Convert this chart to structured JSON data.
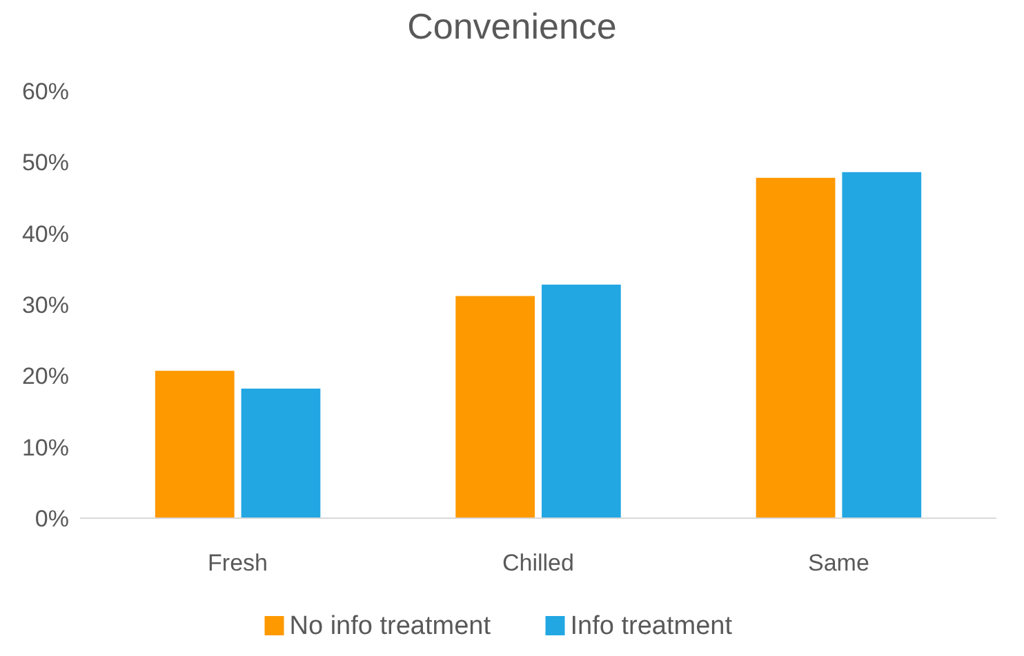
{
  "chart_data": {
    "type": "bar",
    "title": "Convenience",
    "categories": [
      "Fresh",
      "Chilled",
      "Same"
    ],
    "series": [
      {
        "name": "No info treatment",
        "color": "#ff9900",
        "values": [
          20.7,
          31.2,
          47.8
        ]
      },
      {
        "name": "Info treatment",
        "color": "#22a7e3",
        "values": [
          18.2,
          32.8,
          48.6
        ]
      }
    ],
    "ylim": [
      0,
      60
    ],
    "yticks": [
      {
        "value": 0,
        "label": "0%"
      },
      {
        "value": 10,
        "label": "10%"
      },
      {
        "value": 20,
        "label": "20%"
      },
      {
        "value": 30,
        "label": "30%"
      },
      {
        "value": 40,
        "label": "40%"
      },
      {
        "value": 50,
        "label": "50%"
      },
      {
        "value": 60,
        "label": "60%"
      }
    ],
    "grid": false,
    "legend": "bottom"
  }
}
